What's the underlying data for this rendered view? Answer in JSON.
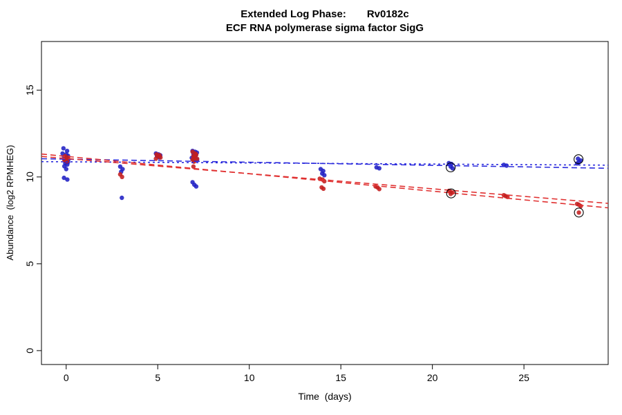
{
  "chart_data": {
    "type": "scatter",
    "title": "Extended Log Phase: Rv0182c",
    "title_left": "Extended Log Phase:",
    "title_right": "Rv0182c",
    "subtitle": "ECF RNA polymerase sigma factor SigG",
    "xlabel": "Time  (days)",
    "ylabel": "Abundance  (log2 RPMHEG)",
    "xlim": [
      -1.35,
      29.6
    ],
    "ylim": [
      -0.8,
      17.8
    ],
    "xticks": [
      0,
      5,
      10,
      15,
      20,
      25
    ],
    "yticks": [
      0,
      5,
      10,
      15
    ],
    "grid": false,
    "legend": "none",
    "colors": {
      "blue_points": "#2020c4",
      "red_points": "#c41f1f",
      "blue_trend": "#2b2bdd",
      "red_trend": "#e03030",
      "circle_marker": "#000000",
      "axis": "#000000"
    },
    "series": [
      {
        "name": "blue-series",
        "color": "#2020c4",
        "points": [
          [
            -0.15,
            11.65
          ],
          [
            0.05,
            11.5
          ],
          [
            -0.2,
            11.35
          ],
          [
            0.0,
            11.3
          ],
          [
            0.1,
            11.22
          ],
          [
            -0.12,
            11.15
          ],
          [
            0.06,
            11.1
          ],
          [
            -0.04,
            11.05
          ],
          [
            0.12,
            11.0
          ],
          [
            -0.08,
            10.95
          ],
          [
            0.02,
            10.9
          ],
          [
            0.1,
            10.85
          ],
          [
            -0.05,
            10.8
          ],
          [
            0.06,
            10.72
          ],
          [
            -0.1,
            10.62
          ],
          [
            0.0,
            10.45
          ],
          [
            -0.12,
            9.95
          ],
          [
            0.06,
            9.85
          ],
          [
            2.95,
            10.6
          ],
          [
            3.08,
            10.45
          ],
          [
            3.0,
            10.3
          ],
          [
            3.04,
            8.8
          ],
          [
            4.9,
            11.35
          ],
          [
            5.04,
            11.3
          ],
          [
            5.14,
            11.25
          ],
          [
            4.96,
            11.2
          ],
          [
            5.08,
            11.12
          ],
          [
            6.9,
            11.5
          ],
          [
            7.04,
            11.45
          ],
          [
            7.14,
            11.4
          ],
          [
            6.95,
            11.32
          ],
          [
            7.08,
            11.25
          ],
          [
            7.0,
            11.18
          ],
          [
            6.86,
            11.1
          ],
          [
            7.05,
            11.05
          ],
          [
            7.15,
            11.0
          ],
          [
            6.95,
            10.95
          ],
          [
            6.9,
            9.7
          ],
          [
            7.0,
            9.55
          ],
          [
            7.1,
            9.45
          ],
          [
            13.9,
            10.45
          ],
          [
            14.04,
            10.35
          ],
          [
            13.98,
            10.2
          ],
          [
            14.1,
            10.1
          ],
          [
            16.95,
            10.55
          ],
          [
            17.1,
            10.5
          ],
          [
            20.9,
            10.8
          ],
          [
            21.04,
            10.75
          ],
          [
            21.0,
            10.6
          ],
          [
            21.1,
            10.5
          ],
          [
            23.9,
            10.7
          ],
          [
            24.05,
            10.65
          ],
          [
            27.95,
            11.05
          ],
          [
            28.1,
            10.95
          ],
          [
            28.0,
            10.85
          ],
          [
            27.9,
            10.78
          ]
        ]
      },
      {
        "name": "red-series",
        "color": "#c41f1f",
        "points": [
          [
            -0.06,
            11.2
          ],
          [
            0.1,
            11.12
          ],
          [
            0.0,
            11.05
          ],
          [
            -0.1,
            10.98
          ],
          [
            0.05,
            10.9
          ],
          [
            2.95,
            10.15
          ],
          [
            3.05,
            10.0
          ],
          [
            4.94,
            11.3
          ],
          [
            5.1,
            11.25
          ],
          [
            5.0,
            11.2
          ],
          [
            5.15,
            11.12
          ],
          [
            4.9,
            11.05
          ],
          [
            6.9,
            11.45
          ],
          [
            7.05,
            11.35
          ],
          [
            7.1,
            11.28
          ],
          [
            6.95,
            11.2
          ],
          [
            7.0,
            11.12
          ],
          [
            7.15,
            11.05
          ],
          [
            6.9,
            11.0
          ],
          [
            7.04,
            10.95
          ],
          [
            6.98,
            10.88
          ],
          [
            6.95,
            10.6
          ],
          [
            13.85,
            9.9
          ],
          [
            14.0,
            9.85
          ],
          [
            14.1,
            9.75
          ],
          [
            13.95,
            9.4
          ],
          [
            14.05,
            9.32
          ],
          [
            16.9,
            9.45
          ],
          [
            17.0,
            9.4
          ],
          [
            17.1,
            9.3
          ],
          [
            20.9,
            9.2
          ],
          [
            21.0,
            9.15
          ],
          [
            21.1,
            9.1
          ],
          [
            21.0,
            9.02
          ],
          [
            23.9,
            8.95
          ],
          [
            24.0,
            8.9
          ],
          [
            24.1,
            8.85
          ],
          [
            27.9,
            8.45
          ],
          [
            28.0,
            8.4
          ],
          [
            28.1,
            8.32
          ],
          [
            28.0,
            7.95
          ]
        ]
      }
    ],
    "circled_points": [
      [
        21.0,
        10.55
      ],
      [
        21.02,
        9.05
      ],
      [
        27.98,
        11.02
      ],
      [
        28.0,
        7.95
      ]
    ],
    "trend_lines": [
      {
        "series": "blue",
        "style": "dashed",
        "color": "#2b2bdd",
        "dash": "8 5",
        "x0": -1.35,
        "y0": 11.05,
        "x1": 29.6,
        "y1": 10.5
      },
      {
        "series": "blue",
        "style": "dotted",
        "color": "#2b2bdd",
        "dash": "3 4",
        "x0": -1.35,
        "y0": 10.88,
        "x1": 29.6,
        "y1": 10.68
      },
      {
        "series": "red",
        "style": "dashed",
        "color": "#e03030",
        "dash": "8 5",
        "x0": -1.35,
        "y0": 11.32,
        "x1": 29.6,
        "y1": 8.22
      },
      {
        "series": "red",
        "style": "dashed",
        "color": "#e03030",
        "dash": "8 5",
        "x0": -1.35,
        "y0": 11.18,
        "x1": 29.6,
        "y1": 8.48
      }
    ]
  }
}
